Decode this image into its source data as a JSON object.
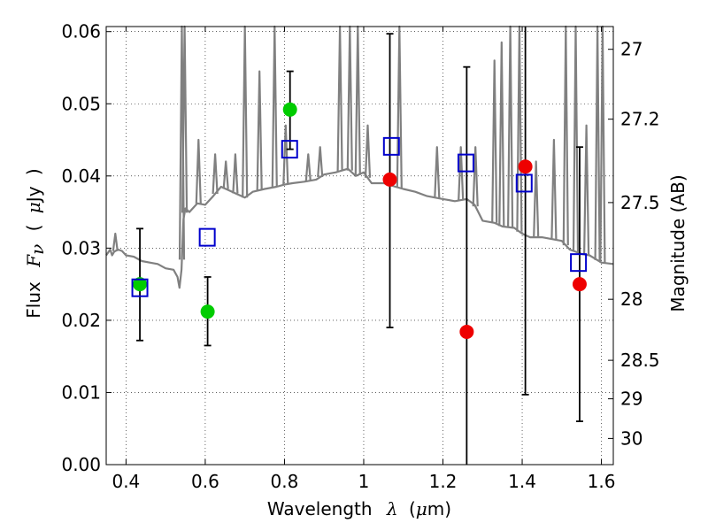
{
  "chart_data": {
    "type": "scatter",
    "xlabel": {
      "prefix": "Wavelength",
      "symbol": "λ",
      "unit_open": "(",
      "unit_mu": "μ",
      "unit_rest": "m)"
    },
    "ylabel": {
      "prefix": "Flux",
      "symbol": "F",
      "sub": "ν",
      "unit_open": "(",
      "unit_mu": "μ",
      "unit_rest": "Jy",
      "unit_close": ")"
    },
    "y2label": "Magnitude (AB)",
    "xlim": [
      0.35,
      1.63
    ],
    "ylim": [
      0.0,
      0.0607
    ],
    "x_ticks": [
      0.4,
      0.6,
      0.8,
      1.0,
      1.2,
      1.4,
      1.6
    ],
    "x_tick_labels": [
      "0.4",
      "0.6",
      "0.8",
      "1",
      "1.2",
      "1.4",
      "1.6"
    ],
    "y_ticks": [
      0.0,
      0.01,
      0.02,
      0.03,
      0.04,
      0.05,
      0.06
    ],
    "y_tick_labels": [
      "0.00",
      "0.01",
      "0.02",
      "0.03",
      "0.04",
      "0.05",
      "0.06"
    ],
    "y2_ticks": [
      {
        "mag": 27.0,
        "label": "27"
      },
      {
        "mag": 27.2,
        "label": "27.2"
      },
      {
        "mag": 27.5,
        "label": "27.5"
      },
      {
        "mag": 28.0,
        "label": "28"
      },
      {
        "mag": 28.5,
        "label": "28.5"
      },
      {
        "mag": 29.0,
        "label": "29"
      },
      {
        "mag": 30.0,
        "label": "30"
      }
    ],
    "grid": true,
    "colors": {
      "green": "#00cc00",
      "red": "#ee0000",
      "blue": "#0000cc",
      "spectrum": "#808080",
      "errorbar": "#000000"
    },
    "series": [
      {
        "marker": "circle",
        "color": "#00cc00",
        "points": [
          {
            "x": 0.435,
            "y": 0.025,
            "yerr_low": 0.0172,
            "yerr_high": 0.0327
          },
          {
            "x": 0.606,
            "y": 0.0212,
            "yerr_low": 0.0165,
            "yerr_high": 0.026
          },
          {
            "x": 0.814,
            "y": 0.0492,
            "yerr_low": 0.0437,
            "yerr_high": 0.0545
          }
        ]
      },
      {
        "marker": "circle",
        "color": "#ee0000",
        "points": [
          {
            "x": 1.066,
            "y": 0.0395,
            "yerr_low": 0.019,
            "yerr_high": 0.0597
          },
          {
            "x": 1.26,
            "y": 0.0184,
            "yerr_low": 0.0,
            "yerr_high": 0.0551
          },
          {
            "x": 1.408,
            "y": 0.0413,
            "yerr_low": 0.0097,
            "yerr_high": 0.0607
          },
          {
            "x": 1.545,
            "y": 0.025,
            "yerr_low": 0.006,
            "yerr_high": 0.044
          }
        ]
      },
      {
        "marker": "square-open",
        "color": "#0000cc",
        "points": [
          {
            "x": 0.435,
            "y": 0.0245
          },
          {
            "x": 0.605,
            "y": 0.0315
          },
          {
            "x": 0.813,
            "y": 0.0437
          },
          {
            "x": 1.07,
            "y": 0.0441
          },
          {
            "x": 1.258,
            "y": 0.0418
          },
          {
            "x": 1.405,
            "y": 0.039
          },
          {
            "x": 1.542,
            "y": 0.028
          }
        ]
      }
    ],
    "model_spectrum": {
      "color": "#808080",
      "x": [
        0.35,
        0.36,
        0.365,
        0.37,
        0.38,
        0.39,
        0.4,
        0.42,
        0.44,
        0.46,
        0.48,
        0.5,
        0.52,
        0.53,
        0.535,
        0.54,
        0.545,
        0.55,
        0.56,
        0.58,
        0.6,
        0.62,
        0.64,
        0.66,
        0.68,
        0.7,
        0.72,
        0.75,
        0.78,
        0.8,
        0.82,
        0.85,
        0.88,
        0.9,
        0.93,
        0.96,
        0.98,
        1.0,
        1.02,
        1.05,
        1.08,
        1.1,
        1.13,
        1.16,
        1.2,
        1.23,
        1.26,
        1.28,
        1.3,
        1.33,
        1.35,
        1.38,
        1.4,
        1.42,
        1.45,
        1.48,
        1.5,
        1.52,
        1.55,
        1.57,
        1.6,
        1.63
      ],
      "y": [
        0.029,
        0.0298,
        0.029,
        0.0295,
        0.0298,
        0.0296,
        0.029,
        0.0288,
        0.0282,
        0.028,
        0.0278,
        0.0272,
        0.027,
        0.026,
        0.0245,
        0.027,
        0.034,
        0.0355,
        0.035,
        0.0362,
        0.036,
        0.0372,
        0.0385,
        0.038,
        0.0375,
        0.037,
        0.0378,
        0.0382,
        0.0385,
        0.0388,
        0.039,
        0.0392,
        0.0395,
        0.0402,
        0.0405,
        0.041,
        0.04,
        0.0405,
        0.039,
        0.039,
        0.0385,
        0.0382,
        0.0378,
        0.0372,
        0.0368,
        0.0365,
        0.0368,
        0.036,
        0.0338,
        0.0335,
        0.033,
        0.0328,
        0.032,
        0.0315,
        0.0315,
        0.0312,
        0.031,
        0.0298,
        0.0292,
        0.029,
        0.028,
        0.0278
      ]
    },
    "spectrum_lines": [
      {
        "x": 0.373,
        "top": 0.032
      },
      {
        "x": 0.541,
        "top": 0.0607
      },
      {
        "x": 0.548,
        "top": 0.0607
      },
      {
        "x": 0.583,
        "top": 0.045
      },
      {
        "x": 0.625,
        "top": 0.043
      },
      {
        "x": 0.652,
        "top": 0.042
      },
      {
        "x": 0.676,
        "top": 0.043
      },
      {
        "x": 0.7,
        "top": 0.0607
      },
      {
        "x": 0.737,
        "top": 0.0545
      },
      {
        "x": 0.775,
        "top": 0.0607
      },
      {
        "x": 0.803,
        "top": 0.047
      },
      {
        "x": 0.86,
        "top": 0.043
      },
      {
        "x": 0.89,
        "top": 0.044
      },
      {
        "x": 0.94,
        "top": 0.0607
      },
      {
        "x": 0.965,
        "top": 0.0607
      },
      {
        "x": 0.985,
        "top": 0.0607
      },
      {
        "x": 1.01,
        "top": 0.047
      },
      {
        "x": 1.09,
        "top": 0.0607
      },
      {
        "x": 1.185,
        "top": 0.044
      },
      {
        "x": 1.245,
        "top": 0.044
      },
      {
        "x": 1.282,
        "top": 0.044
      },
      {
        "x": 1.33,
        "top": 0.056
      },
      {
        "x": 1.348,
        "top": 0.0585
      },
      {
        "x": 1.37,
        "top": 0.0607
      },
      {
        "x": 1.393,
        "top": 0.0607
      },
      {
        "x": 1.435,
        "top": 0.042
      },
      {
        "x": 1.48,
        "top": 0.045
      },
      {
        "x": 1.51,
        "top": 0.0607
      },
      {
        "x": 1.535,
        "top": 0.0607
      },
      {
        "x": 1.562,
        "top": 0.047
      },
      {
        "x": 1.59,
        "top": 0.0607
      },
      {
        "x": 1.603,
        "top": 0.0607
      }
    ]
  }
}
